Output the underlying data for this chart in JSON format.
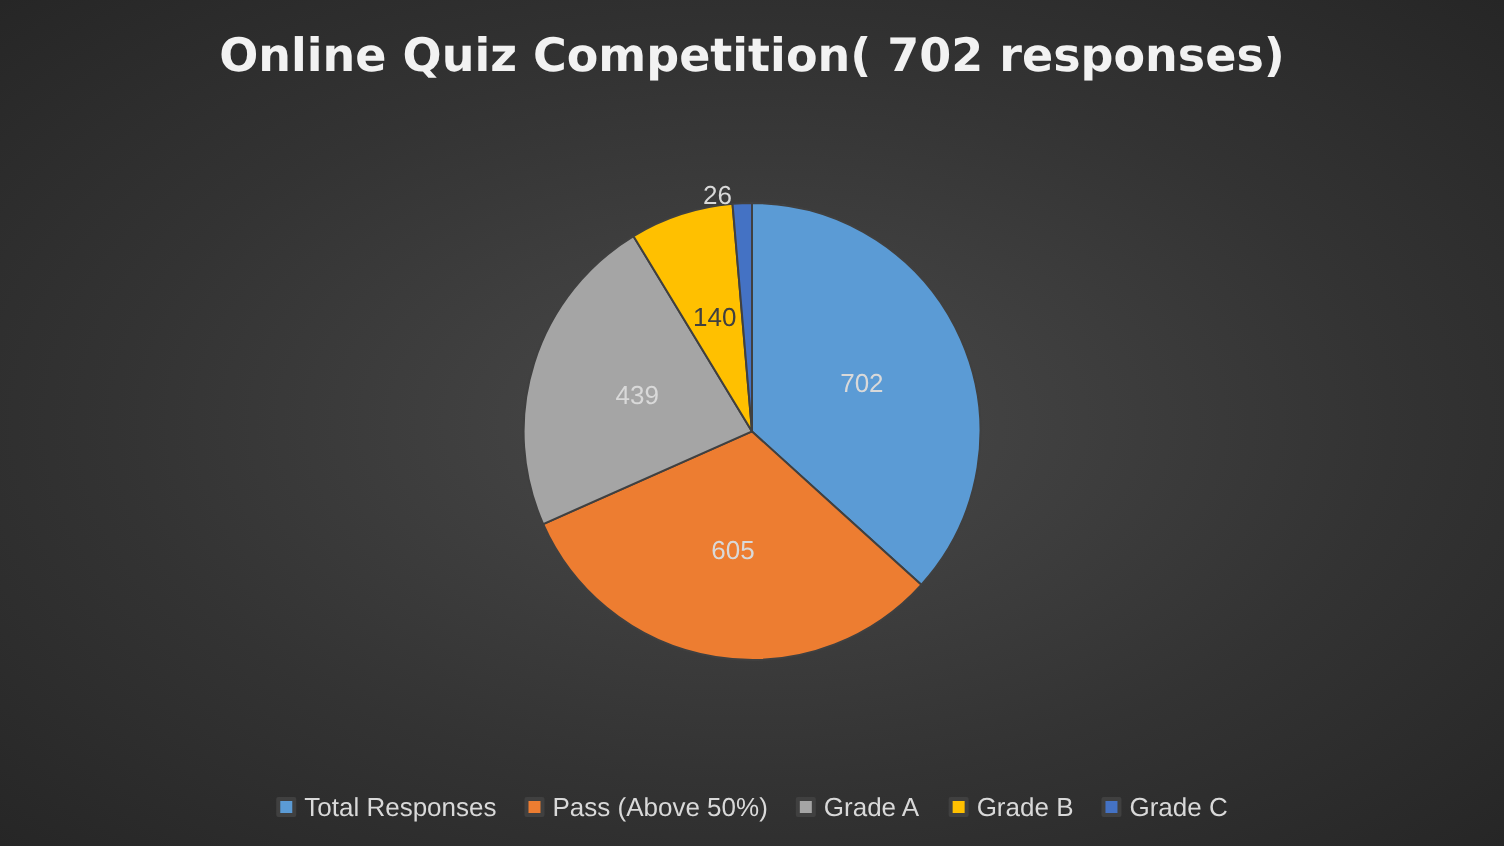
{
  "chart_data": {
    "type": "pie",
    "title": "Online Quiz Competition( 702 responses)",
    "categories": [
      "Total Responses",
      "Pass (Above 50%)",
      "Grade A",
      "Grade B",
      "Grade C"
    ],
    "values": [
      702,
      605,
      439,
      140,
      26
    ],
    "colors": [
      "#5b9bd5",
      "#ed7d31",
      "#a5a5a5",
      "#ffc000",
      "#4472c4"
    ],
    "data_labels": true,
    "legend": "bottom"
  }
}
